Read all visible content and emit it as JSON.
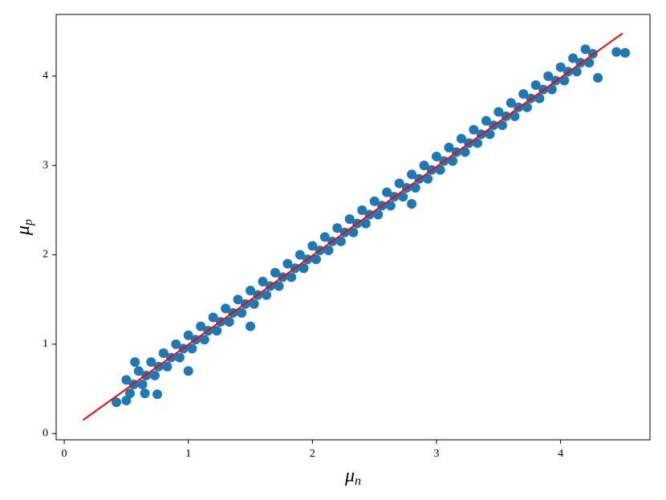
{
  "chart_data": {
    "type": "scatter",
    "xlabel": {
      "symbol": "μ",
      "subscript": "n"
    },
    "ylabel": {
      "symbol": "μ",
      "subscript": "p"
    },
    "xlim": [
      -0.065,
      4.72
    ],
    "ylim": [
      -0.07,
      4.69
    ],
    "xticks": [
      0,
      1,
      2,
      3,
      4
    ],
    "yticks": [
      0,
      1,
      2,
      3,
      4
    ],
    "grid": false,
    "series": [
      {
        "type": "scatter",
        "color": "#1f77b4",
        "x": [
          0.5,
          0.53,
          0.56,
          0.6,
          0.63,
          0.66,
          0.7,
          0.73,
          0.76,
          0.8,
          0.83,
          0.86,
          0.9,
          0.93,
          0.96,
          1.0,
          1.03,
          1.06,
          1.1,
          1.13,
          1.16,
          1.2,
          1.23,
          1.26,
          1.3,
          1.33,
          1.36,
          1.4,
          1.43,
          1.46,
          1.5,
          1.53,
          1.56,
          1.6,
          1.63,
          1.66,
          1.7,
          1.73,
          1.76,
          1.8,
          1.83,
          1.86,
          1.9,
          1.93,
          1.96,
          2.0,
          2.03,
          2.06,
          2.1,
          2.13,
          2.16,
          2.2,
          2.23,
          2.26,
          2.3,
          2.33,
          2.36,
          2.4,
          2.43,
          2.46,
          2.5,
          2.53,
          2.56,
          2.6,
          2.63,
          2.66,
          2.7,
          2.73,
          2.76,
          2.8,
          2.83,
          2.86,
          2.9,
          2.93,
          2.96,
          3.0,
          3.03,
          3.06,
          3.1,
          3.13,
          3.16,
          3.2,
          3.23,
          3.26,
          3.3,
          3.33,
          3.36,
          3.4,
          3.43,
          3.46,
          3.5,
          3.53,
          3.56,
          3.6,
          3.63,
          3.66,
          3.7,
          3.73,
          3.76,
          3.8,
          3.83,
          3.86,
          3.9,
          3.93,
          3.96,
          4.0,
          4.03,
          4.06,
          4.1,
          4.13,
          4.16,
          4.2,
          4.23,
          4.26,
          0.42,
          0.5,
          0.57,
          0.65,
          0.75,
          1.0,
          1.5,
          2.8,
          4.3,
          4.45,
          4.52
        ],
        "y": [
          0.6,
          0.45,
          0.55,
          0.7,
          0.55,
          0.65,
          0.8,
          0.65,
          0.75,
          0.9,
          0.75,
          0.85,
          1.0,
          0.85,
          0.95,
          1.1,
          0.95,
          1.05,
          1.2,
          1.05,
          1.15,
          1.3,
          1.15,
          1.25,
          1.4,
          1.25,
          1.35,
          1.5,
          1.35,
          1.45,
          1.6,
          1.45,
          1.55,
          1.7,
          1.55,
          1.65,
          1.8,
          1.65,
          1.75,
          1.9,
          1.75,
          1.85,
          2.0,
          1.85,
          1.95,
          2.1,
          1.95,
          2.05,
          2.2,
          2.05,
          2.15,
          2.3,
          2.15,
          2.25,
          2.4,
          2.25,
          2.35,
          2.5,
          2.35,
          2.45,
          2.6,
          2.45,
          2.55,
          2.7,
          2.55,
          2.65,
          2.8,
          2.65,
          2.75,
          2.9,
          2.75,
          2.85,
          3.0,
          2.85,
          2.95,
          3.1,
          2.95,
          3.05,
          3.2,
          3.05,
          3.15,
          3.3,
          3.15,
          3.25,
          3.4,
          3.25,
          3.35,
          3.5,
          3.35,
          3.45,
          3.6,
          3.45,
          3.55,
          3.7,
          3.55,
          3.65,
          3.8,
          3.65,
          3.75,
          3.9,
          3.75,
          3.85,
          4.0,
          3.85,
          3.95,
          4.1,
          3.95,
          4.05,
          4.2,
          4.05,
          4.15,
          4.3,
          4.15,
          4.25,
          0.35,
          0.37,
          0.8,
          0.45,
          0.44,
          0.7,
          1.2,
          2.57,
          3.98,
          4.27,
          4.26
        ]
      },
      {
        "type": "line",
        "color": "#ff0000",
        "x": [
          0.15,
          4.5
        ],
        "y": [
          0.15,
          4.48
        ]
      }
    ]
  }
}
